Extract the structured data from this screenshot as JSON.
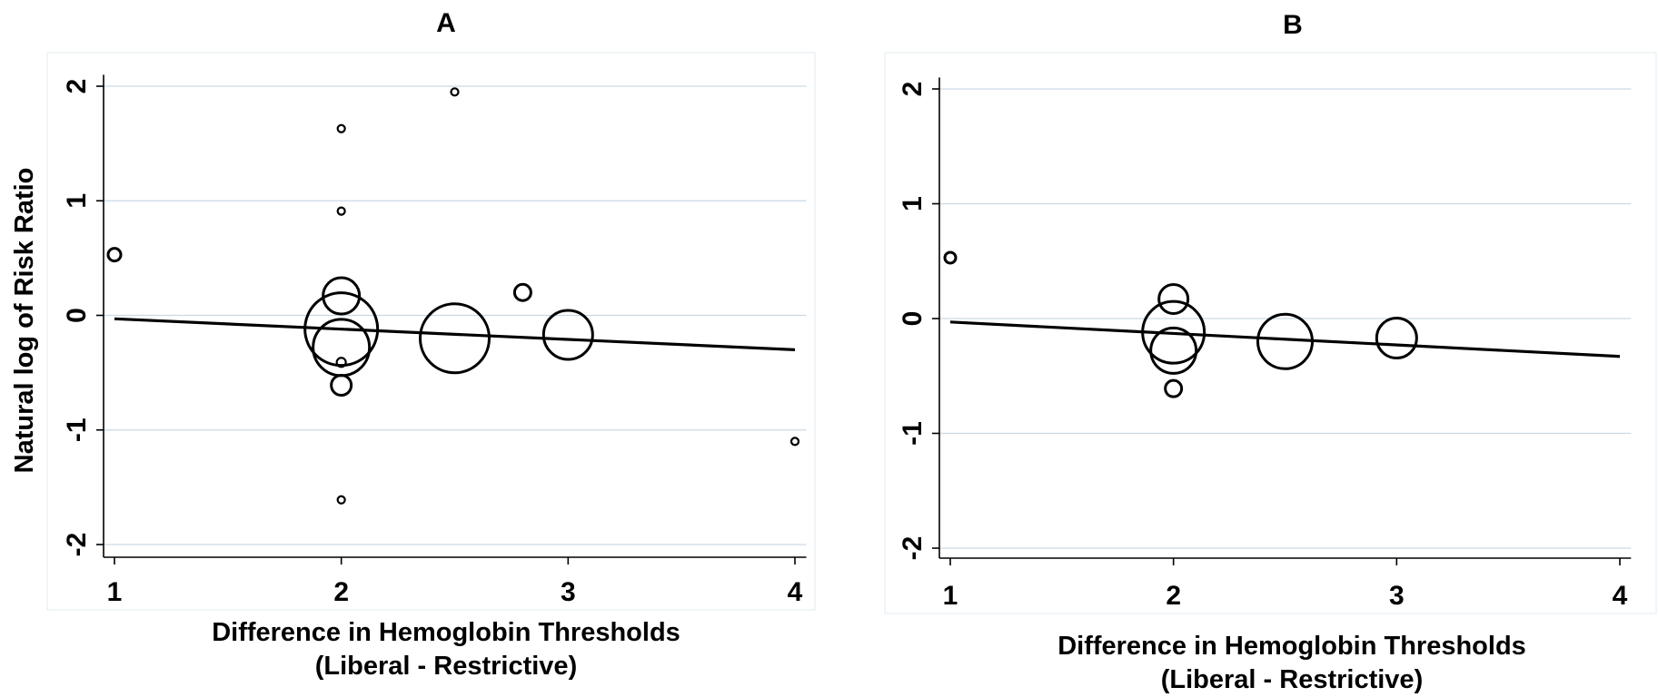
{
  "chart_data": [
    {
      "type": "scatter",
      "title": "A",
      "xlabel": "Difference in Hemoglobin Thresholds",
      "xlabel_line2": "(Liberal - Restrictive)",
      "ylabel": "Natural log of Risk Ratio",
      "xticks": [
        1,
        2,
        3,
        4
      ],
      "yticks": [
        -2,
        -1,
        0,
        1,
        2
      ],
      "xlim": [
        0.98,
        4.05
      ],
      "ylim": [
        -2.1,
        2.1
      ],
      "grid": true,
      "points": [
        {
          "x": 1.0,
          "y": 0.53,
          "size": 7
        },
        {
          "x": 2.0,
          "y": 1.63,
          "size": 4
        },
        {
          "x": 2.0,
          "y": 0.91,
          "size": 4
        },
        {
          "x": 2.5,
          "y": 1.95,
          "size": 4
        },
        {
          "x": 2.0,
          "y": 0.17,
          "size": 20
        },
        {
          "x": 2.0,
          "y": -0.12,
          "size": 40
        },
        {
          "x": 2.0,
          "y": -0.28,
          "size": 31
        },
        {
          "x": 2.0,
          "y": -0.41,
          "size": 5
        },
        {
          "x": 2.0,
          "y": -0.61,
          "size": 11
        },
        {
          "x": 2.0,
          "y": -1.61,
          "size": 4
        },
        {
          "x": 2.5,
          "y": -0.2,
          "size": 38
        },
        {
          "x": 2.8,
          "y": 0.2,
          "size": 9
        },
        {
          "x": 3.0,
          "y": -0.17,
          "size": 27
        },
        {
          "x": 4.0,
          "y": -1.1,
          "size": 4
        }
      ],
      "fit_line": {
        "x": [
          1,
          4
        ],
        "y": [
          -0.03,
          -0.3
        ]
      }
    },
    {
      "type": "scatter",
      "title": "B",
      "xlabel": "Difference in Hemoglobin Thresholds",
      "xlabel_line2": "(Liberal - Restrictive)",
      "ylabel": "",
      "xticks": [
        1,
        2,
        3,
        4
      ],
      "yticks": [
        -2,
        -1,
        0,
        1,
        2
      ],
      "xlim": [
        0.98,
        4.05
      ],
      "ylim": [
        -2.1,
        2.1
      ],
      "grid": true,
      "points": [
        {
          "x": 1.0,
          "y": 0.53,
          "size": 6
        },
        {
          "x": 2.0,
          "y": 0.17,
          "size": 16
        },
        {
          "x": 2.0,
          "y": -0.12,
          "size": 34
        },
        {
          "x": 2.0,
          "y": -0.28,
          "size": 25
        },
        {
          "x": 2.0,
          "y": -0.61,
          "size": 9
        },
        {
          "x": 2.5,
          "y": -0.2,
          "size": 30
        },
        {
          "x": 3.0,
          "y": -0.17,
          "size": 22
        }
      ],
      "fit_line": {
        "x": [
          1,
          4
        ],
        "y": [
          -0.03,
          -0.33
        ]
      }
    }
  ]
}
